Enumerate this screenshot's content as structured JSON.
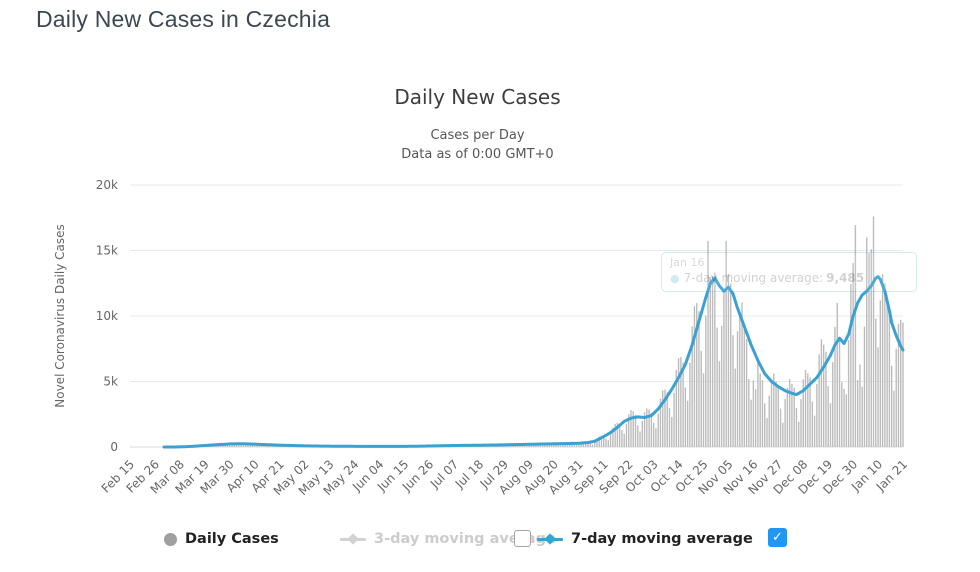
{
  "page": {
    "title": "Daily New Cases in Czechia"
  },
  "chart": {
    "title": "Daily New Cases",
    "subtitle_line1": "Cases per Day",
    "subtitle_line2": "Data as of 0:00 GMT+0",
    "y_axis_title": "Novel Coronavirus Daily Cases"
  },
  "tooltip": {
    "date": "Jan 16",
    "marker_icon": "dot-icon",
    "series_label": "7-day moving average:",
    "value": "9,485"
  },
  "legend": {
    "items": [
      {
        "id": "daily-cases",
        "label": "Daily Cases",
        "marker": "circle-icon",
        "color": "#9f9f9f",
        "text_color": "#222222",
        "active": true
      },
      {
        "id": "ma3",
        "label": "3-day moving average",
        "marker": "line-diamond-icon",
        "color": "#d2d2d2",
        "text_color": "#cccccc",
        "active": false,
        "checkbox": "unchecked"
      },
      {
        "id": "ma7",
        "label": "7-day moving average",
        "marker": "line-diamond-icon",
        "color": "#3aa1d2",
        "text_color": "#222222",
        "active": true,
        "checkbox": "checked"
      }
    ]
  },
  "colors": {
    "bars": "#bcbcbc",
    "line": "#3aa1d2",
    "grid": "#e9e9e9",
    "axis_line": "#d6dce4",
    "checkbox_checked": "#2196f3"
  },
  "chart_data": {
    "type": "bar",
    "title": "Daily New Cases",
    "xlabel": "",
    "ylabel": "Novel Coronavirus Daily Cases",
    "ylim": [
      0,
      20000
    ],
    "grid": true,
    "legend_position": "bottom",
    "x_start": "Feb 15",
    "x_end": "Jan 21",
    "x_tick_interval_days": 11,
    "x_tick_labels": [
      "Feb 15",
      "Feb 26",
      "Mar 08",
      "Mar 19",
      "Mar 30",
      "Apr 10",
      "Apr 21",
      "May 02",
      "May 13",
      "May 24",
      "Jun 04",
      "Jun 15",
      "Jun 26",
      "Jul 07",
      "Jul 18",
      "Jul 29",
      "Aug 09",
      "Aug 20",
      "Aug 31",
      "Sep 11",
      "Sep 22",
      "Oct 03",
      "Oct 14",
      "Oct 25",
      "Nov 05",
      "Nov 16",
      "Nov 27",
      "Dec 08",
      "Dec 19",
      "Dec 30",
      "Jan 10",
      "Jan 21"
    ],
    "y_tick_values": [
      0,
      5000,
      10000,
      15000,
      20000
    ],
    "y_tick_labels": [
      "0",
      "5k",
      "10k",
      "15k",
      "20k"
    ],
    "series": [
      {
        "name": "Daily Cases",
        "type": "bar",
        "color": "#bcbcbc",
        "visible": true,
        "values": [
          0,
          0,
          0,
          0,
          0,
          0,
          0,
          0,
          0,
          0,
          0,
          0,
          0,
          0,
          0,
          1,
          1,
          2,
          4,
          4,
          4,
          6,
          6,
          15,
          25,
          32,
          44,
          51,
          42,
          36,
          70,
          109,
          133,
          142,
          138,
          101,
          78,
          141,
          201,
          230,
          232,
          217,
          153,
          116,
          207,
          282,
          311,
          300,
          270,
          179,
          127,
          213,
          283,
          297,
          272,
          232,
          150,
          105,
          171,
          221,
          230,
          211,
          180,
          115,
          80,
          129,
          165,
          173,
          159,
          135,
          86,
          60,
          97,
          125,
          131,
          118,
          100,
          64,
          44,
          73,
          94,
          100,
          92,
          79,
          50,
          35,
          59,
          77,
          82,
          76,
          66,
          42,
          30,
          50,
          66,
          70,
          67,
          58,
          38,
          27,
          45,
          60,
          64,
          61,
          53,
          35,
          25,
          42,
          55,
          60,
          56,
          50,
          32,
          23,
          40,
          54,
          59,
          57,
          51,
          35,
          25,
          44,
          60,
          68,
          67,
          62,
          42,
          31,
          56,
          79,
          91,
          90,
          84,
          58,
          44,
          77,
          109,
          122,
          120,
          110,
          76,
          56,
          99,
          136,
          150,
          145,
          131,
          89,
          65,
          112,
          151,
          166,
          161,
          144,
          97,
          72,
          123,
          169,
          186,
          181,
          162,
          110,
          81,
          140,
          191,
          211,
          206,
          187,
          127,
          94,
          163,
          222,
          246,
          238,
          214,
          145,
          107,
          184,
          251,
          279,
          271,
          244,
          166,
          121,
          208,
          282,
          310,
          299,
          268,
          181,
          132,
          226,
          307,
          338,
          327,
          295,
          199,
          146,
          251,
          353,
          401,
          398,
          367,
          269,
          212,
          387,
          625,
          794,
          866,
          864,
          648,
          520,
          968,
          1455,
          1750,
          1830,
          1782,
          1296,
          1014,
          1789,
          2498,
          2816,
          2724,
          2448,
          1656,
          1187,
          1995,
          2655,
          2944,
          2867,
          2592,
          1848,
          1421,
          2552,
          3697,
          4310,
          4392,
          4176,
          2976,
          2288,
          4136,
          5900,
          6784,
          6872,
          6444,
          4536,
          3536,
          6424,
          9204,
          10752,
          10980,
          10368,
          7344,
          5616,
          10032,
          15729,
          12977,
          13051,
          13303,
          9113,
          6542,
          9241,
          12088,
          15731,
          13226,
          12486,
          8535,
          5980,
          8838,
          10381,
          11033,
          9016,
          8235,
          5181,
          3608,
          5078,
          4402,
          6452,
          5616,
          5098,
          3336,
          2205,
          3918,
          5148,
          5610,
          4997,
          4550,
          2931,
          1855,
          3655,
          4519,
          5176,
          4818,
          4526,
          2976,
          1923,
          3659,
          5168,
          5876,
          5625,
          5295,
          3465,
          2393,
          4819,
          7071,
          8235,
          7811,
          7263,
          4652,
          3343,
          6477,
          9171,
          10995,
          8236,
          4933,
          4440,
          4017,
          8161,
          12453,
          14055,
          16939,
          5100,
          6300,
          4600,
          9200,
          16000,
          14800,
          15100,
          17600,
          9800,
          7600,
          11200,
          13200,
          12500,
          11400,
          10500,
          6200,
          4300,
          7500,
          9400,
          9700,
          9500
        ]
      },
      {
        "name": "3-day moving average",
        "type": "line",
        "color": "#d2d2d2",
        "visible": false
      },
      {
        "name": "7-day moving average",
        "type": "line",
        "color": "#3aa1d2",
        "visible": true,
        "start_index": 15,
        "values": [
          0,
          0,
          0,
          0,
          0,
          0,
          0,
          0,
          0,
          0,
          0,
          0,
          0,
          0,
          0,
          1,
          1,
          2,
          3,
          3,
          4,
          8,
          12,
          17,
          21,
          25,
          36,
          47,
          58,
          69,
          80,
          92,
          104,
          116,
          128,
          140,
          150,
          160,
          170,
          180,
          190,
          201,
          212,
          224,
          235,
          239,
          243,
          246,
          250,
          248,
          245,
          242,
          240,
          232,
          223,
          215,
          208,
          201,
          194,
          187,
          180,
          173,
          167,
          160,
          153,
          147,
          140,
          135,
          130,
          125,
          120,
          115,
          110,
          106,
          102,
          97,
          93,
          89,
          85,
          83,
          80,
          78,
          75,
          73,
          70,
          68,
          67,
          65,
          64,
          62,
          61,
          59,
          58,
          57,
          56,
          55,
          55,
          54,
          53,
          52,
          51,
          51,
          50,
          50,
          49,
          49,
          48,
          48,
          47,
          47,
          46,
          46,
          45,
          45,
          45,
          46,
          46,
          47,
          47,
          48,
          48,
          50,
          51,
          53,
          55,
          57,
          58,
          60,
          64,
          67,
          71,
          74,
          78,
          81,
          85,
          88,
          92,
          95,
          98,
          102,
          105,
          108,
          112,
          115,
          117,
          119,
          121,
          123,
          125,
          127,
          128,
          130,
          132,
          133,
          135,
          138,
          140,
          143,
          145,
          148,
          150,
          153,
          156,
          159,
          162,
          165,
          169,
          173,
          177,
          181,
          185,
          188,
          192,
          195,
          198,
          202,
          205,
          209,
          213,
          218,
          222,
          226,
          230,
          233,
          236,
          239,
          242,
          245,
          248,
          251,
          254,
          257,
          260,
          264,
          268,
          273,
          277,
          281,
          285,
          299,
          313,
          326,
          340,
          373,
          407,
          440,
          530,
          620,
          710,
          800,
          900,
          1000,
          1100,
          1233,
          1367,
          1500,
          1650,
          1800,
          1950,
          2033,
          2117,
          2200,
          2233,
          2267,
          2300,
          2283,
          2267,
          2250,
          2300,
          2350,
          2400,
          2567,
          2733,
          2900,
          3133,
          3367,
          3600,
          3867,
          4133,
          4400,
          4700,
          5000,
          5300,
          5633,
          5967,
          6300,
          6800,
          7300,
          7800,
          8400,
          9000,
          9600,
          10200,
          10800,
          11400,
          11950,
          12500,
          12700,
          12900,
          12600,
          12300,
          12100,
          11900,
          12050,
          12200,
          11950,
          11700,
          11150,
          10600,
          10133,
          9667,
          9200,
          8733,
          8267,
          7800,
          7400,
          7000,
          6600,
          6267,
          5933,
          5600,
          5400,
          5200,
          5000,
          4867,
          4733,
          4600,
          4500,
          4400,
          4300,
          4233,
          4167,
          4100,
          4050,
          4000,
          4100,
          4200,
          4300,
          4467,
          4633,
          4800,
          4967,
          5133,
          5300,
          5567,
          5833,
          6100,
          6400,
          6700,
          7000,
          7400,
          7800,
          8050,
          8300,
          8100,
          7900,
          8250,
          8600,
          9300,
          10000,
          10500,
          11000,
          11300,
          11600,
          11750,
          11900,
          12100,
          12300,
          12600,
          12900,
          13000,
          12800,
          12350,
          11900,
          11150,
          10400,
          9485,
          8990,
          8500,
          8100,
          7700,
          7400
        ]
      }
    ]
  }
}
